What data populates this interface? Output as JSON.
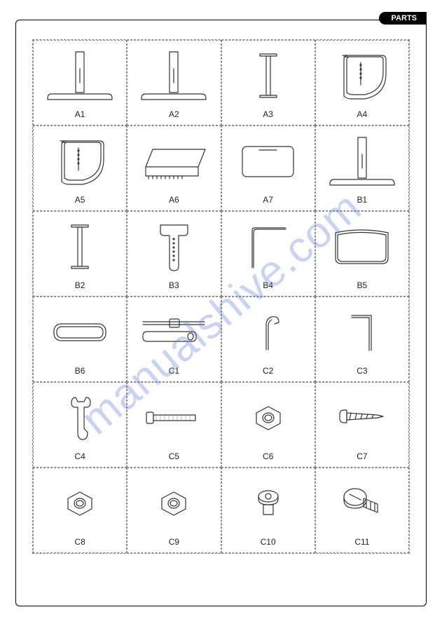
{
  "tab_label": "PARTS",
  "watermark_text": "manualshive.com",
  "stroke_color": "#333333",
  "stroke_width": 1.2,
  "dash_color": "#888888",
  "label_fontsize": 12,
  "label_color": "#222222",
  "parts": [
    {
      "id": "A1",
      "label": "A1",
      "shape": "tstand"
    },
    {
      "id": "A2",
      "label": "A2",
      "shape": "tstand"
    },
    {
      "id": "A3",
      "label": "A3",
      "shape": "ibeam"
    },
    {
      "id": "A4",
      "label": "A4",
      "shape": "sidepanel"
    },
    {
      "id": "A5",
      "label": "A5",
      "shape": "sidepanel"
    },
    {
      "id": "A6",
      "label": "A6",
      "shape": "shelf"
    },
    {
      "id": "A7",
      "label": "A7",
      "shape": "roundrect"
    },
    {
      "id": "B1",
      "label": "B1",
      "shape": "tstand"
    },
    {
      "id": "B2",
      "label": "B2",
      "shape": "ibeam"
    },
    {
      "id": "B3",
      "label": "B3",
      "shape": "tongue"
    },
    {
      "id": "B4",
      "label": "B4",
      "shape": "bentrod"
    },
    {
      "id": "B5",
      "label": "B5",
      "shape": "board"
    },
    {
      "id": "B6",
      "label": "B6",
      "shape": "plate"
    },
    {
      "id": "C1",
      "label": "C1",
      "shape": "handle"
    },
    {
      "id": "C2",
      "label": "C2",
      "shape": "hook"
    },
    {
      "id": "C3",
      "label": "C3",
      "shape": "allen"
    },
    {
      "id": "C4",
      "label": "C4",
      "shape": "wrench"
    },
    {
      "id": "C5",
      "label": "C5",
      "shape": "bolt"
    },
    {
      "id": "C6",
      "label": "C6",
      "shape": "hexnut"
    },
    {
      "id": "C7",
      "label": "C7",
      "shape": "screw"
    },
    {
      "id": "C8",
      "label": "C8",
      "shape": "hexnut"
    },
    {
      "id": "C9",
      "label": "C9",
      "shape": "hexnut"
    },
    {
      "id": "C10",
      "label": "C10",
      "shape": "shortbolt"
    },
    {
      "id": "C11",
      "label": "C11",
      "shape": "bigbolt"
    }
  ]
}
